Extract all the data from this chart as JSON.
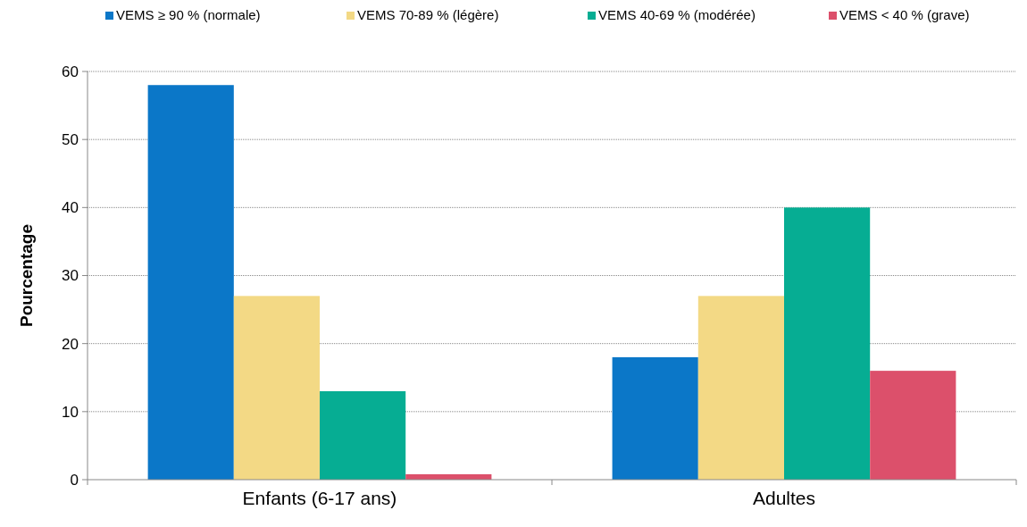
{
  "chart_data": {
    "type": "bar",
    "ylabel": "Pourcentage",
    "categories": [
      "Enfants (6-17 ans)",
      "Adultes"
    ],
    "series": [
      {
        "name": "VEMS ≥ 90 % (normale)",
        "color": "#0b77c8",
        "values": [
          58,
          18
        ]
      },
      {
        "name": "VEMS 70-89 % (légère)",
        "color": "#f3d985",
        "values": [
          27,
          27
        ]
      },
      {
        "name": "VEMS 40-69 % (modérée)",
        "color": "#06ad93",
        "values": [
          13,
          40
        ]
      },
      {
        "name": "VEMS < 40 % (grave)",
        "color": "#dc506b",
        "values": [
          0.8,
          16
        ]
      }
    ],
    "ylim": [
      0,
      60
    ],
    "yticks": [
      0,
      10,
      20,
      30,
      40,
      50,
      60
    ],
    "grid": "y",
    "legend": "top"
  }
}
